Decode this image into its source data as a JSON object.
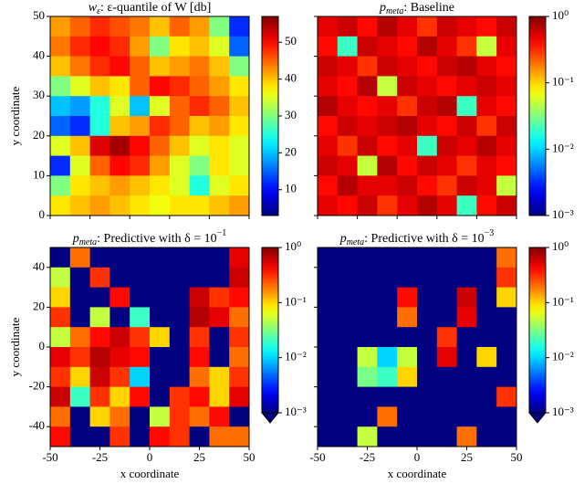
{
  "chart_data": [
    {
      "type": "heatmap",
      "title": {
        "symbol": "w",
        "subscript": "ε",
        "text": ": ε-quantile of W [db]"
      },
      "y_label": "y coordinate",
      "xlim": [
        0,
        50
      ],
      "ylim": [
        0,
        50
      ],
      "xticks": [
        0,
        10,
        20,
        30,
        40,
        50
      ],
      "xtick_labels": false,
      "yticks": [
        0,
        10,
        20,
        30,
        40,
        50
      ],
      "ytick_labels": true,
      "colormap": "jet",
      "colorbar": {
        "lim": [
          3,
          57
        ],
        "ticks": [
          10,
          20,
          30,
          40,
          50
        ],
        "log": false
      },
      "z": [
        [
          42,
          45,
          48,
          46,
          44,
          40,
          45,
          42,
          30,
          12
        ],
        [
          44,
          48,
          50,
          48,
          42,
          30,
          38,
          40,
          35,
          15
        ],
        [
          40,
          44,
          48,
          50,
          45,
          40,
          42,
          44,
          40,
          30
        ],
        [
          30,
          35,
          40,
          38,
          45,
          50,
          48,
          45,
          42,
          38
        ],
        [
          20,
          18,
          25,
          35,
          20,
          35,
          45,
          48,
          45,
          40
        ],
        [
          15,
          12,
          25,
          40,
          42,
          48,
          45,
          40,
          42,
          38
        ],
        [
          35,
          40,
          52,
          55,
          50,
          45,
          40,
          35,
          38,
          35
        ],
        [
          12,
          35,
          45,
          50,
          48,
          42,
          35,
          30,
          38,
          35
        ],
        [
          30,
          38,
          40,
          42,
          40,
          38,
          35,
          25,
          35,
          38
        ],
        [
          38,
          40,
          42,
          40,
          38,
          36,
          38,
          38,
          40,
          42
        ]
      ]
    },
    {
      "type": "heatmap",
      "title": {
        "symbol": "p",
        "subscript": "meta",
        "text": ": Baseline"
      },
      "xlim": [
        0,
        50
      ],
      "ylim": [
        0,
        50
      ],
      "xticks": [
        0,
        10,
        20,
        30,
        40,
        50
      ],
      "xtick_labels": false,
      "yticks": [
        0,
        10,
        20,
        30,
        40,
        50
      ],
      "ytick_labels": false,
      "colormap": "jet",
      "colorbar": {
        "lim": [
          0.001,
          1
        ],
        "ticks": [
          {
            "value": 0.001,
            "label": "10⁻³"
          },
          {
            "value": 0.01,
            "label": "10⁻²"
          },
          {
            "value": 0.1,
            "label": "10⁻¹"
          },
          {
            "value": 1,
            "label": "10⁰"
          }
        ],
        "log": true
      },
      "z": [
        [
          0.5,
          0.6,
          0.4,
          0.7,
          0.5,
          0.3,
          0.6,
          0.5,
          0.4,
          0.6
        ],
        [
          0.4,
          0.02,
          0.6,
          0.5,
          0.4,
          0.7,
          0.5,
          0.3,
          0.05,
          0.5
        ],
        [
          0.6,
          0.5,
          0.3,
          0.6,
          0.5,
          0.4,
          0.6,
          0.7,
          0.5,
          0.4
        ],
        [
          0.5,
          0.4,
          0.7,
          0.05,
          0.6,
          0.5,
          0.4,
          0.5,
          0.6,
          0.5
        ],
        [
          0.7,
          0.5,
          0.4,
          0.5,
          0.3,
          0.6,
          0.7,
          0.02,
          0.5,
          0.4
        ],
        [
          0.4,
          0.6,
          0.5,
          0.6,
          0.7,
          0.5,
          0.4,
          0.6,
          0.3,
          0.6
        ],
        [
          0.5,
          0.3,
          0.6,
          0.4,
          0.5,
          0.02,
          0.6,
          0.5,
          0.7,
          0.5
        ],
        [
          0.6,
          0.5,
          0.05,
          0.7,
          0.4,
          0.6,
          0.5,
          0.3,
          0.5,
          0.4
        ],
        [
          0.4,
          0.7,
          0.5,
          0.5,
          0.6,
          0.4,
          0.3,
          0.6,
          0.5,
          0.05
        ],
        [
          0.5,
          0.4,
          0.6,
          0.3,
          0.5,
          0.7,
          0.5,
          0.02,
          0.4,
          0.6
        ]
      ]
    },
    {
      "type": "heatmap",
      "title": {
        "symbol": "p",
        "subscript": "meta",
        "text": ": Predictive with δ = 10",
        "superscript": "−1"
      },
      "x_label": "x coordinate",
      "y_label": "y coordinate",
      "xlim": [
        -50,
        50
      ],
      "ylim": [
        -50,
        50
      ],
      "xticks": [
        -50,
        -25,
        0,
        25,
        50
      ],
      "xtick_labels": true,
      "yticks": [
        -40,
        -20,
        0,
        20,
        40
      ],
      "ytick_labels": true,
      "colormap": "jet",
      "colorbar": {
        "lim": [
          0.001,
          1
        ],
        "ticks": [
          {
            "value": 0.001,
            "label": "10⁻³"
          },
          {
            "value": 0.01,
            "label": "10⁻²"
          },
          {
            "value": 0.1,
            "label": "10⁻¹"
          },
          {
            "value": 1,
            "label": "10⁰"
          }
        ],
        "log": true,
        "extend": "min"
      },
      "z": [
        [
          0.001,
          0.2,
          0.001,
          0.001,
          0.001,
          0.001,
          0.001,
          0.001,
          0.001,
          0.5
        ],
        [
          0.05,
          0.001,
          0.3,
          0.001,
          0.001,
          0.001,
          0.001,
          0.001,
          0.001,
          0.6
        ],
        [
          0.1,
          0.001,
          0.001,
          0.4,
          0.001,
          0.001,
          0.001,
          0.6,
          0.3,
          0.4
        ],
        [
          0.3,
          0.001,
          0.05,
          0.001,
          0.02,
          0.001,
          0.001,
          0.7,
          0.5,
          0.2
        ],
        [
          0.05,
          0.2,
          0.4,
          0.6,
          0.3,
          0.1,
          0.001,
          0.3,
          0.001,
          0.3
        ],
        [
          0.5,
          0.3,
          0.7,
          0.5,
          0.4,
          0.001,
          0.001,
          0.4,
          0.001,
          0.2
        ],
        [
          0.3,
          0.1,
          0.6,
          0.3,
          0.01,
          0.001,
          0.001,
          0.2,
          0.1,
          0.3
        ],
        [
          0.6,
          0.02,
          0.3,
          0.1,
          0.4,
          0.001,
          0.3,
          0.4,
          0.1,
          0.5
        ],
        [
          0.2,
          0.001,
          0.1,
          0.2,
          0.001,
          0.05,
          0.3,
          0.2,
          0.4,
          0.001
        ],
        [
          0.4,
          0.001,
          0.001,
          0.3,
          0.001,
          0.4,
          0.3,
          0.001,
          0.2,
          0.2
        ]
      ]
    },
    {
      "type": "heatmap",
      "title": {
        "symbol": "p",
        "subscript": "meta",
        "text": ": Predictive with δ = 10",
        "superscript": "−3"
      },
      "x_label": "x coordinate",
      "xlim": [
        -50,
        50
      ],
      "ylim": [
        -50,
        50
      ],
      "xticks": [
        -50,
        -25,
        0,
        25,
        50
      ],
      "xtick_labels": true,
      "yticks": [
        -40,
        -20,
        0,
        20,
        40
      ],
      "ytick_labels": false,
      "colormap": "jet",
      "colorbar": {
        "lim": [
          0.001,
          1
        ],
        "ticks": [
          {
            "value": 0.001,
            "label": "10⁻³"
          },
          {
            "value": 0.01,
            "label": "10⁻²"
          },
          {
            "value": 0.1,
            "label": "10⁻¹"
          },
          {
            "value": 1,
            "label": "10⁰"
          }
        ],
        "log": true,
        "extend": "min"
      },
      "z": [
        [
          0.001,
          0.001,
          0.001,
          0.001,
          0.001,
          0.001,
          0.001,
          0.001,
          0.001,
          0.2
        ],
        [
          0.001,
          0.001,
          0.001,
          0.001,
          0.001,
          0.001,
          0.001,
          0.001,
          0.001,
          0.3
        ],
        [
          0.001,
          0.001,
          0.001,
          0.001,
          0.4,
          0.001,
          0.001,
          0.6,
          0.001,
          0.1
        ],
        [
          0.001,
          0.001,
          0.001,
          0.001,
          0.2,
          0.001,
          0.001,
          0.5,
          0.001,
          0.001
        ],
        [
          0.001,
          0.001,
          0.001,
          0.001,
          0.001,
          0.001,
          0.3,
          0.001,
          0.001,
          0.001
        ],
        [
          0.001,
          0.001,
          0.05,
          0.01,
          0.05,
          0.001,
          0.5,
          0.001,
          0.1,
          0.001
        ],
        [
          0.001,
          0.001,
          0.03,
          0.02,
          0.1,
          0.001,
          0.001,
          0.001,
          0.001,
          0.001
        ],
        [
          0.001,
          0.001,
          0.001,
          0.001,
          0.001,
          0.001,
          0.001,
          0.001,
          0.001,
          0.3
        ],
        [
          0.001,
          0.001,
          0.001,
          0.2,
          0.001,
          0.001,
          0.001,
          0.001,
          0.001,
          0.001
        ],
        [
          0.001,
          0.001,
          0.05,
          0.001,
          0.001,
          0.001,
          0.001,
          0.2,
          0.001,
          0.001
        ]
      ]
    }
  ]
}
